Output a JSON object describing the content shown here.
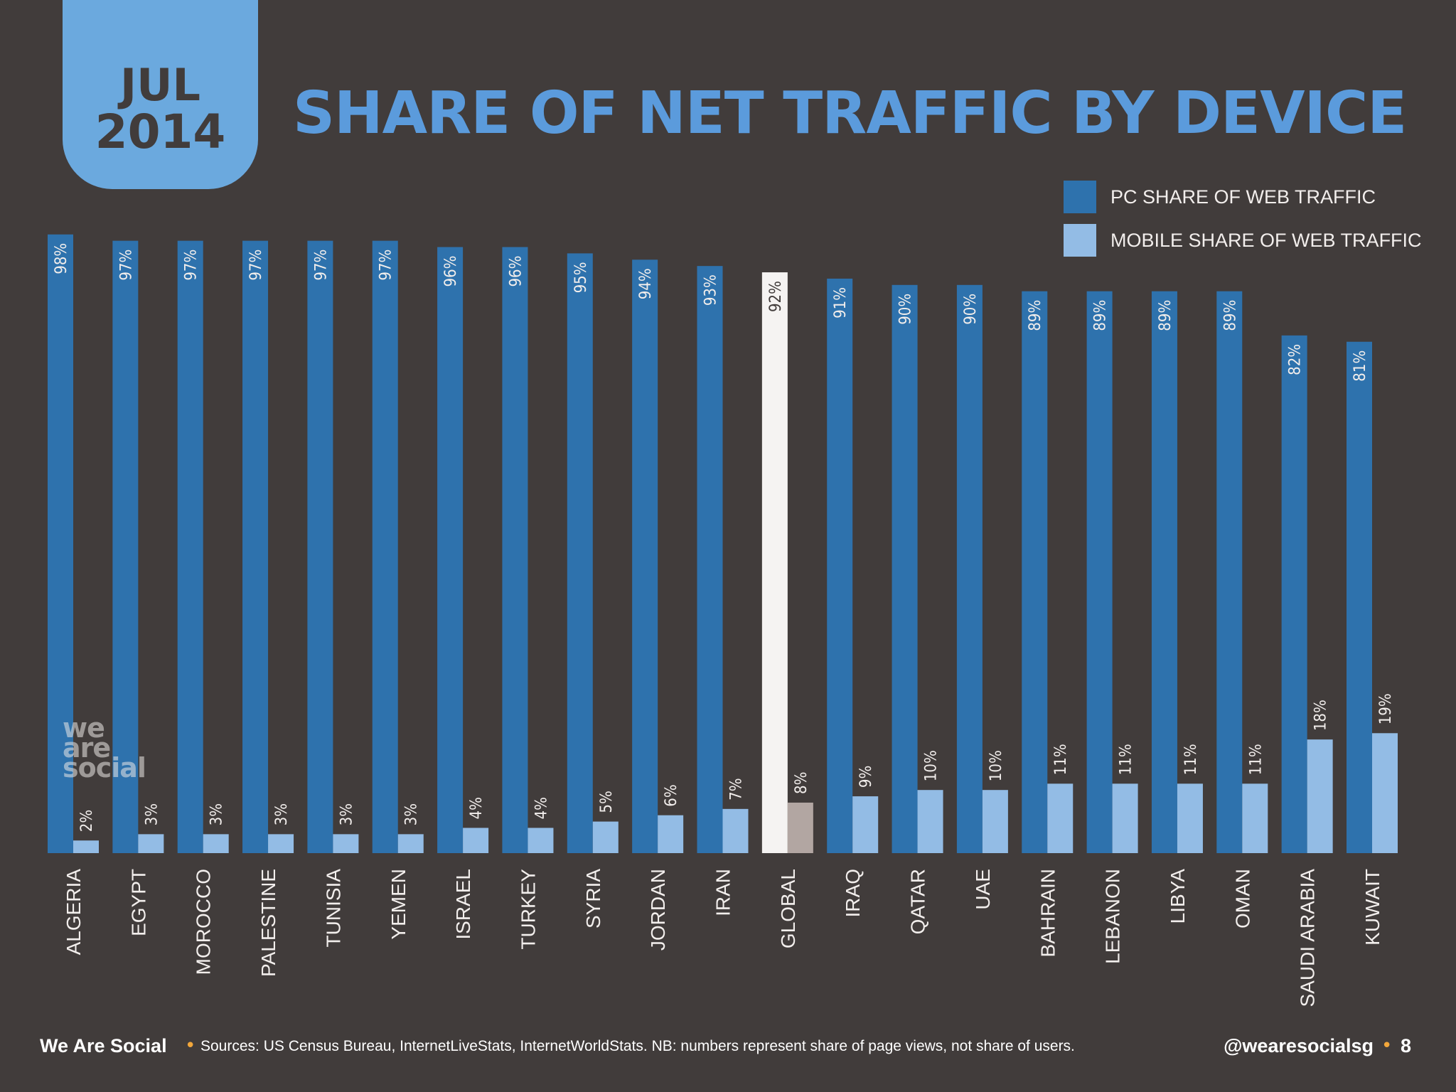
{
  "badge": {
    "month": "JUL",
    "year": "2014"
  },
  "title": "SHARE OF NET TRAFFIC BY DEVICE",
  "legend": [
    {
      "label": "PC SHARE OF WEB TRAFFIC",
      "color": "#2e72ad"
    },
    {
      "label": "MOBILE SHARE OF WEB TRAFFIC",
      "color": "#93bce5"
    }
  ],
  "colors": {
    "background": "#413c3b",
    "pc": "#2e72ad",
    "mobile": "#93bce5",
    "global_pc": "#f5f3f2",
    "global_mobile": "#b2a6a2",
    "text": "#f2eeec",
    "title": "#5b9bdc"
  },
  "chart_data": {
    "type": "bar",
    "categories": [
      "ALGERIA",
      "EGYPT",
      "MOROCCO",
      "PALESTINE",
      "TUNISIA",
      "YEMEN",
      "ISRAEL",
      "TURKEY",
      "SYRIA",
      "JORDAN",
      "IRAN",
      "GLOBAL",
      "IRAQ",
      "QATAR",
      "UAE",
      "BAHRAIN",
      "LEBANON",
      "LIBYA",
      "OMAN",
      "SAUDI ARABIA",
      "KUWAIT"
    ],
    "series": [
      {
        "name": "PC SHARE OF WEB TRAFFIC",
        "values": [
          98,
          97,
          97,
          97,
          97,
          97,
          96,
          96,
          95,
          94,
          93,
          92,
          91,
          90,
          90,
          89,
          89,
          89,
          89,
          82,
          81
        ]
      },
      {
        "name": "MOBILE SHARE OF WEB TRAFFIC",
        "values": [
          2,
          3,
          3,
          3,
          3,
          3,
          4,
          4,
          5,
          6,
          7,
          8,
          9,
          10,
          10,
          11,
          11,
          11,
          11,
          18,
          19
        ]
      }
    ],
    "highlight": "GLOBAL",
    "value_suffix": "%",
    "ylim": [
      0,
      100
    ],
    "title": "SHARE OF NET TRAFFIC BY DEVICE",
    "legend_position": "top-right",
    "grid": false
  },
  "logo": {
    "line1": "we",
    "line2": "are",
    "line3": "social"
  },
  "footer": {
    "brand": "We Are Social",
    "sources": "Sources: US Census Bureau, InternetLiveStats, InternetWorldStats. NB: numbers represent share of page views, not share of users.",
    "handle": "@wearesocialsg",
    "page": "8"
  }
}
